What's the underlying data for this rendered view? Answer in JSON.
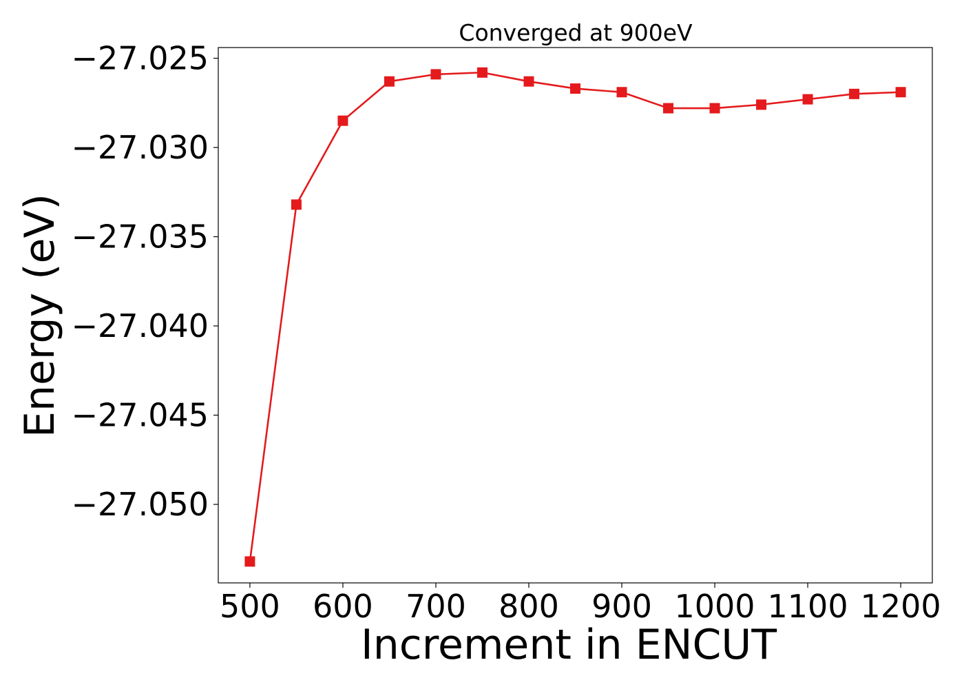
{
  "chart_data": {
    "type": "line",
    "title": "Converged at 900eV",
    "xlabel": "Increment in ENCUT",
    "ylabel": "Energy (eV)",
    "xlim": [
      466,
      1234
    ],
    "ylim": [
      -27.0544,
      -27.0244
    ],
    "xticks": [
      500,
      600,
      700,
      800,
      900,
      1000,
      1100,
      1200
    ],
    "xtick_labels": [
      "500",
      "600",
      "700",
      "800",
      "900",
      "1000",
      "1100",
      "1200"
    ],
    "yticks": [
      -27.025,
      -27.03,
      -27.035,
      -27.04,
      -27.045,
      -27.05
    ],
    "ytick_labels": [
      "−27.025",
      "−27.030",
      "−27.035",
      "−27.040",
      "−27.045",
      "−27.050"
    ],
    "grid": false,
    "series": [
      {
        "color": "#e41a1c",
        "marker": "square",
        "x": [
          500,
          550,
          600,
          650,
          700,
          750,
          800,
          850,
          900,
          950,
          1000,
          1050,
          1100,
          1150,
          1200
        ],
        "y": [
          -27.0532,
          -27.0332,
          -27.0285,
          -27.0263,
          -27.0259,
          -27.0258,
          -27.0263,
          -27.0267,
          -27.0269,
          -27.0278,
          -27.0278,
          -27.0276,
          -27.0273,
          -27.027,
          -27.0269
        ]
      }
    ]
  }
}
